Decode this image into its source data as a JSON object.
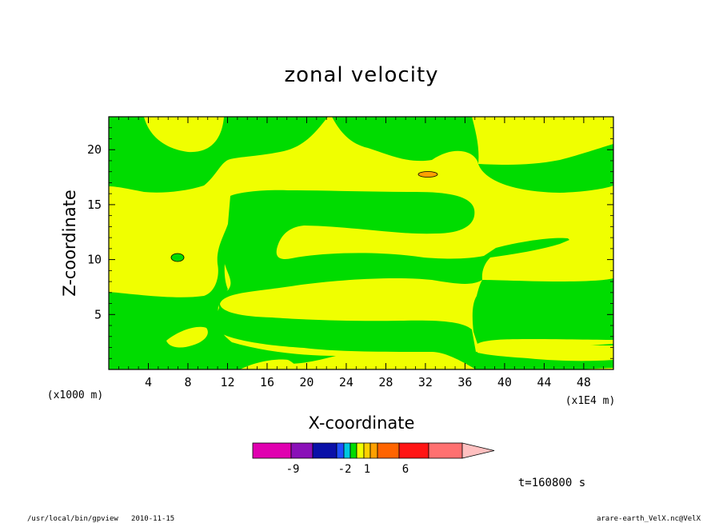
{
  "chart_data": {
    "type": "heatmap",
    "title": "zonal velocity",
    "xlabel": "X-coordinate",
    "ylabel": "Z-coordinate",
    "x_unit": "(x1E4 m)",
    "y_unit": "(x1000 m)",
    "xlim": [
      0,
      51
    ],
    "ylim": [
      0,
      23
    ],
    "x_ticks": [
      "4",
      "8",
      "12",
      "16",
      "20",
      "24",
      "28",
      "32",
      "36",
      "40",
      "44",
      "48"
    ],
    "y_ticks": [
      "5",
      "10",
      "15",
      "20"
    ],
    "x_tick_values": [
      4,
      8,
      12,
      16,
      20,
      24,
      28,
      32,
      36,
      40,
      44,
      48
    ],
    "y_tick_values": [
      5,
      10,
      15,
      20
    ],
    "time_label": "t=160800 s",
    "colorbar": {
      "labels": [
        "-9",
        "-2",
        "1",
        "6"
      ],
      "label_values": [
        -9,
        -2,
        1,
        6
      ],
      "colors": [
        "#e000b0",
        "#8a10b8",
        "#0a10a8",
        "#1f4fff",
        "#00c8e0",
        "#00dc00",
        "#f0ff00",
        "#ffd000",
        "#ffa000",
        "#ff6400",
        "#ff1414",
        "#ff7070",
        "#ffc0c0"
      ],
      "level_colors": {
        "positive_low": "#f0ff00",
        "negative_low": "#00dc00",
        "positive_mid": "#ffa000"
      }
    },
    "regions_description": "Alternating bands of small positive (yellow) and small negative (green) zonal velocity across the domain"
  },
  "footer": {
    "left": "/usr/local/bin/gpview   2010-11-15",
    "right": "arare-earth_VelX.nc@VelX"
  }
}
